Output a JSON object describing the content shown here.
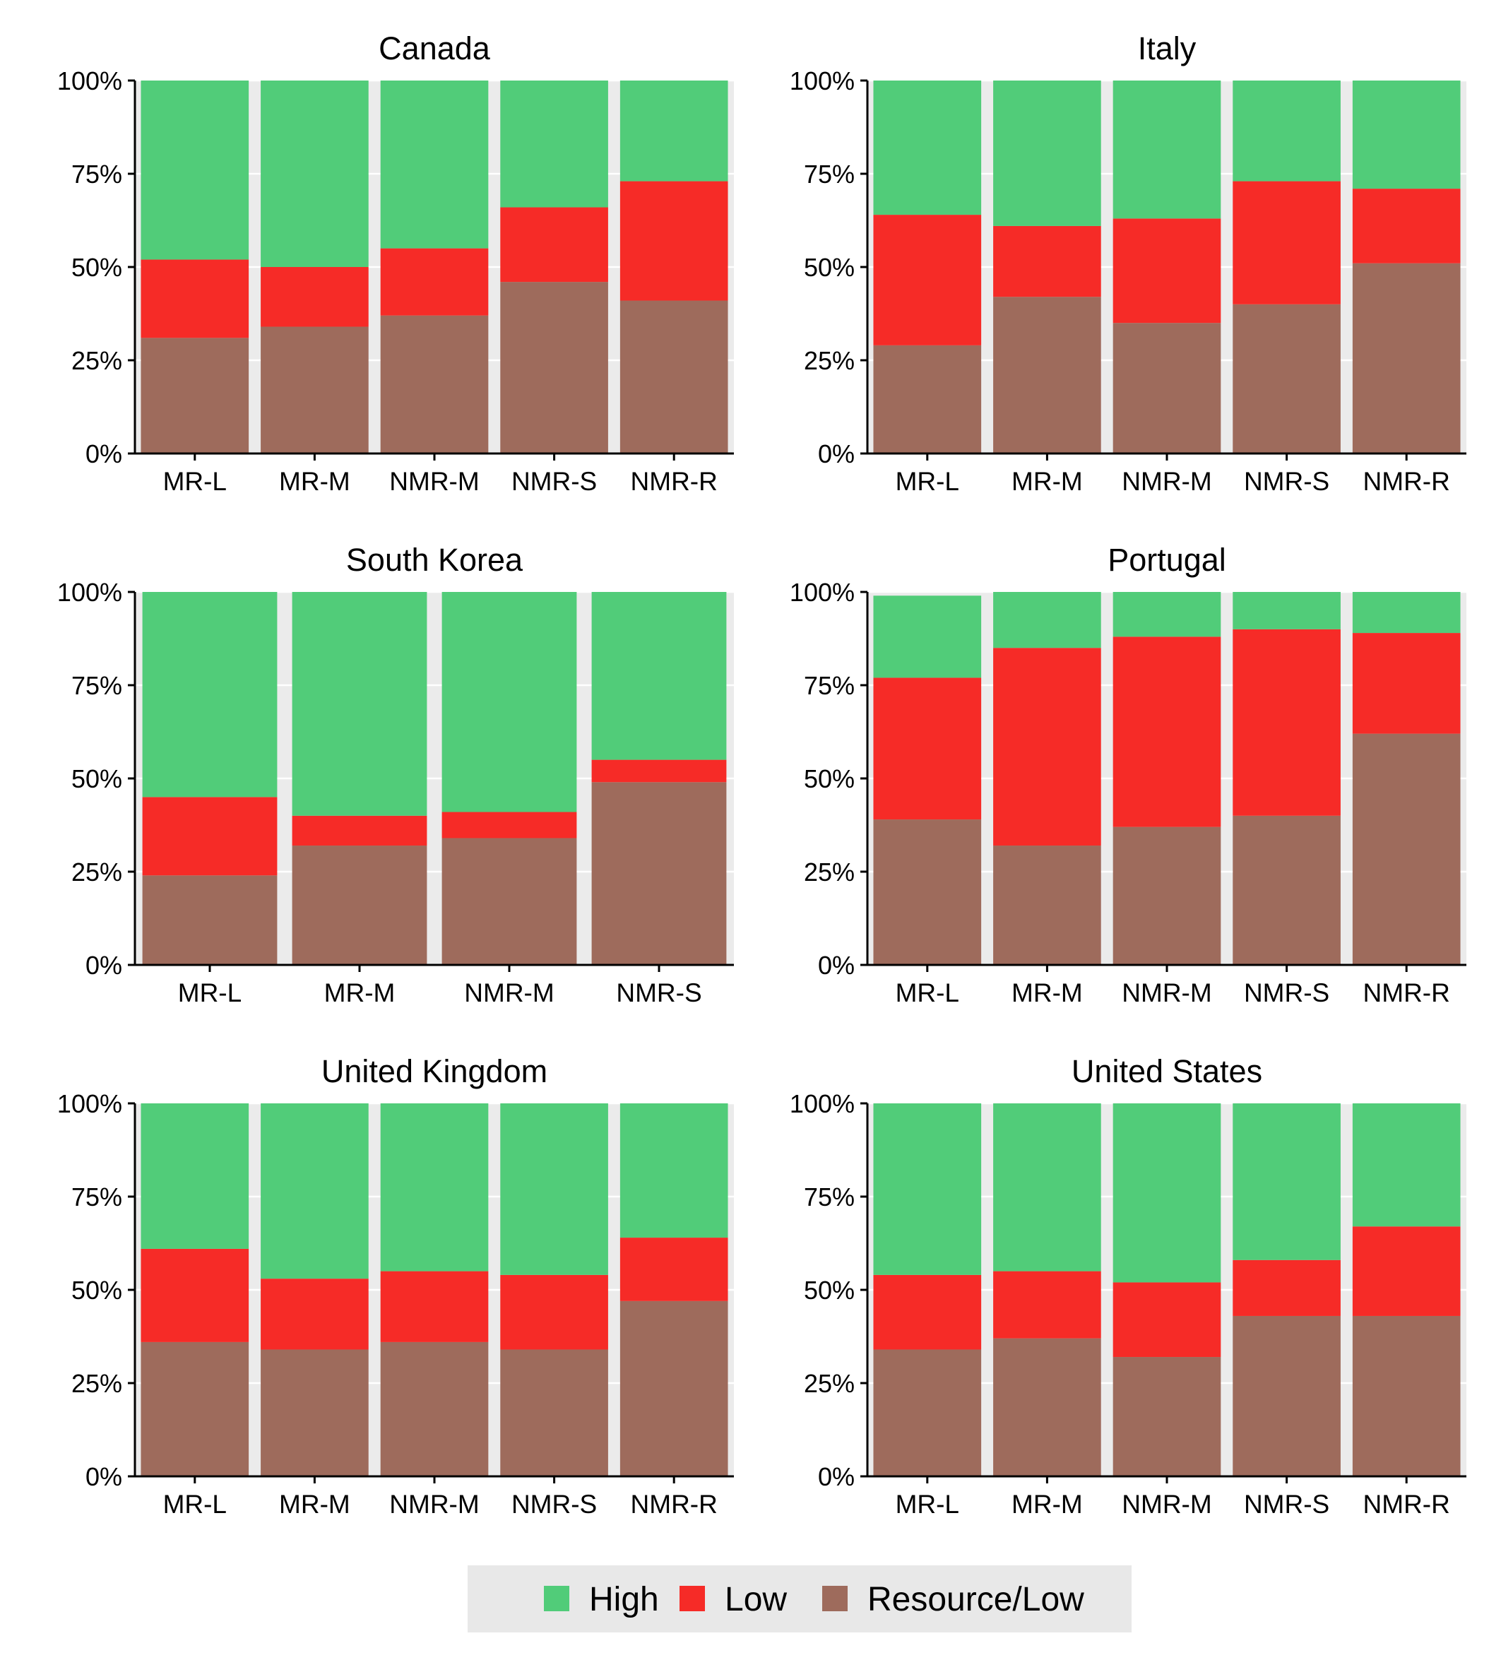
{
  "colors": {
    "High": "#51cc79",
    "Low": "#f62b27",
    "Resource/Low": "#9e6b5c",
    "panel_bg": "#ebebeb",
    "grid": "#ffffff",
    "legend_bg": "#e8e8e8"
  },
  "chart_data": [
    {
      "type": "bar",
      "stacked": true,
      "title": "Canada",
      "categories": [
        "MR-L",
        "MR-M",
        "NMR-M",
        "NMR-S",
        "NMR-R"
      ],
      "ylim": [
        0,
        100
      ],
      "y_ticks": [
        "0%",
        "25%",
        "50%",
        "75%",
        "100%"
      ],
      "series": [
        {
          "name": "Resource/Low",
          "values": [
            31,
            34,
            37,
            46,
            41
          ]
        },
        {
          "name": "Low",
          "values": [
            21,
            16,
            18,
            20,
            32
          ]
        },
        {
          "name": "High",
          "values": [
            48,
            50,
            45,
            34,
            27
          ]
        }
      ]
    },
    {
      "type": "bar",
      "stacked": true,
      "title": "Italy",
      "categories": [
        "MR-L",
        "MR-M",
        "NMR-M",
        "NMR-S",
        "NMR-R"
      ],
      "ylim": [
        0,
        100
      ],
      "y_ticks": [
        "0%",
        "25%",
        "50%",
        "75%",
        "100%"
      ],
      "series": [
        {
          "name": "Resource/Low",
          "values": [
            29,
            42,
            35,
            40,
            51
          ]
        },
        {
          "name": "Low",
          "values": [
            35,
            19,
            28,
            33,
            20
          ]
        },
        {
          "name": "High",
          "values": [
            36,
            39,
            37,
            27,
            29
          ]
        }
      ]
    },
    {
      "type": "bar",
      "stacked": true,
      "title": "South Korea",
      "categories": [
        "MR-L",
        "MR-M",
        "NMR-M",
        "NMR-S"
      ],
      "ylim": [
        0,
        100
      ],
      "y_ticks": [
        "0%",
        "25%",
        "50%",
        "75%",
        "100%"
      ],
      "series": [
        {
          "name": "Resource/Low",
          "values": [
            24,
            32,
            34,
            49
          ]
        },
        {
          "name": "Low",
          "values": [
            21,
            8,
            7,
            6
          ]
        },
        {
          "name": "High",
          "values": [
            55,
            60,
            59,
            45
          ]
        }
      ]
    },
    {
      "type": "bar",
      "stacked": true,
      "title": "Portugal",
      "categories": [
        "MR-L",
        "MR-M",
        "NMR-M",
        "NMR-S",
        "NMR-R"
      ],
      "ylim": [
        0,
        100
      ],
      "y_ticks": [
        "0%",
        "25%",
        "50%",
        "75%",
        "100%"
      ],
      "series": [
        {
          "name": "Resource/Low",
          "values": [
            39,
            32,
            37,
            40,
            62
          ]
        },
        {
          "name": "Low",
          "values": [
            38,
            53,
            51,
            50,
            27
          ]
        },
        {
          "name": "High",
          "values": [
            22,
            15,
            12,
            10,
            11
          ]
        }
      ]
    },
    {
      "type": "bar",
      "stacked": true,
      "title": "United Kingdom",
      "categories": [
        "MR-L",
        "MR-M",
        "NMR-M",
        "NMR-S",
        "NMR-R"
      ],
      "ylim": [
        0,
        100
      ],
      "y_ticks": [
        "0%",
        "25%",
        "50%",
        "75%",
        "100%"
      ],
      "series": [
        {
          "name": "Resource/Low",
          "values": [
            36,
            34,
            36,
            34,
            47
          ]
        },
        {
          "name": "Low",
          "values": [
            25,
            19,
            19,
            20,
            17
          ]
        },
        {
          "name": "High",
          "values": [
            39,
            47,
            45,
            46,
            36
          ]
        }
      ]
    },
    {
      "type": "bar",
      "stacked": true,
      "title": "United States",
      "categories": [
        "MR-L",
        "MR-M",
        "NMR-M",
        "NMR-S",
        "NMR-R"
      ],
      "ylim": [
        0,
        100
      ],
      "y_ticks": [
        "0%",
        "25%",
        "50%",
        "75%",
        "100%"
      ],
      "series": [
        {
          "name": "Resource/Low",
          "values": [
            34,
            37,
            32,
            43,
            43
          ]
        },
        {
          "name": "Low",
          "values": [
            20,
            18,
            20,
            15,
            24
          ]
        },
        {
          "name": "High",
          "values": [
            46,
            45,
            48,
            42,
            33
          ]
        }
      ]
    }
  ],
  "legend": {
    "placement": "bottom",
    "entries": [
      "High",
      "Low",
      "Resource/Low"
    ]
  }
}
